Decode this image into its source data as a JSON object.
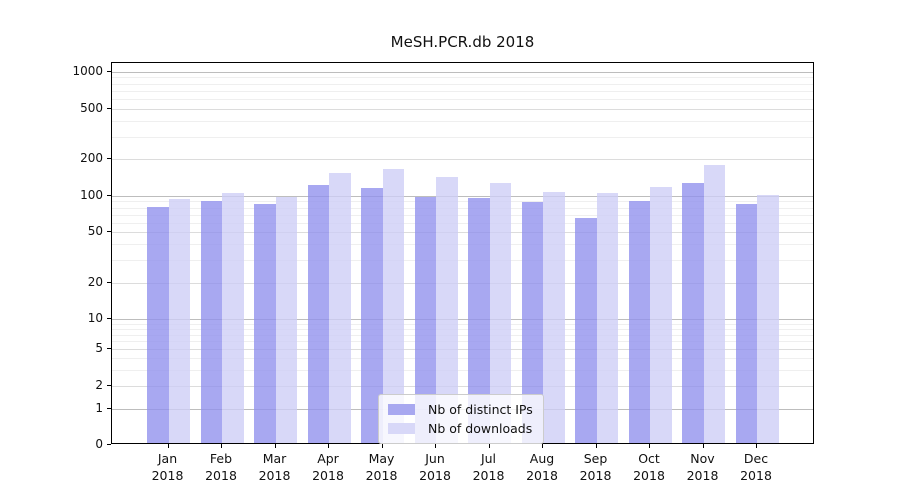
{
  "chart_data": {
    "type": "bar",
    "title": "MeSH.PCR.db 2018",
    "categories": [
      "Jan",
      "Feb",
      "Mar",
      "Apr",
      "May",
      "Jun",
      "Jul",
      "Aug",
      "Sep",
      "Oct",
      "Nov",
      "Dec"
    ],
    "category_year": "2018",
    "series": [
      {
        "name": "Nb of distinct IPs",
        "color": "#a8a8f0",
        "values": [
          78,
          88,
          83,
          119,
          111,
          94,
          92,
          86,
          63,
          88,
          124,
          82
        ]
      },
      {
        "name": "Nb of downloads",
        "color": "#d8d8f8",
        "values": [
          91,
          102,
          94,
          148,
          161,
          137,
          122,
          104,
          101,
          114,
          173,
          98
        ]
      }
    ],
    "xlabel": "",
    "ylabel": "",
    "y_scale": "symlog",
    "y_ticks": [
      0,
      1,
      2,
      5,
      10,
      20,
      50,
      100,
      200,
      500,
      1000
    ],
    "ylim": [
      0,
      1175
    ],
    "grid": true,
    "legend_position": "lower center"
  }
}
